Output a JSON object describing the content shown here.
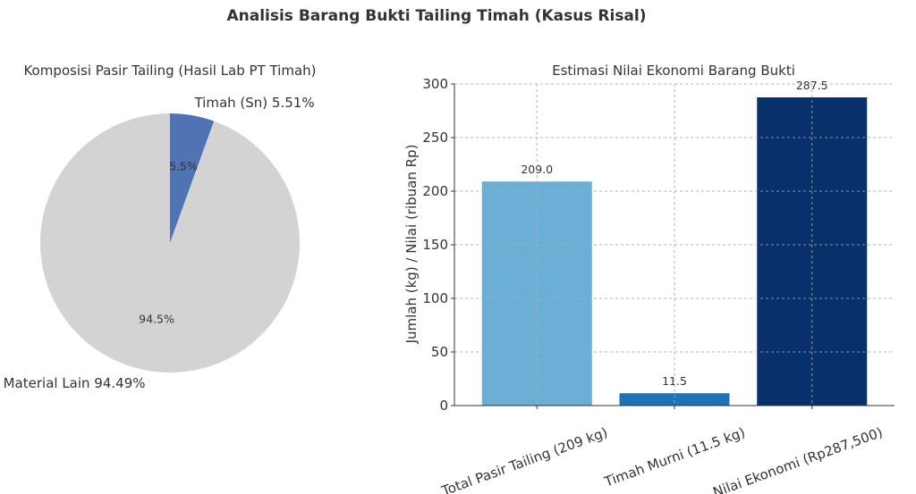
{
  "figure_title": "Analisis Barang Bukti Tailing Timah (Kasus Risal)",
  "chart_data": [
    {
      "type": "pie",
      "title": "Komposisi Pasir Tailing (Hasil Lab PT Timah)",
      "labels": [
        "Timah (Sn) 5.51%",
        "Material Lain 94.49%"
      ],
      "values": [
        5.51,
        94.49
      ],
      "autopct_labels": [
        "5.5%",
        "94.5%"
      ],
      "colors": [
        "#4f73b3",
        "#d3d3d3"
      ],
      "start_angle_deg": 90,
      "direction": "clockwise"
    },
    {
      "type": "bar",
      "title": "Estimasi Nilai Ekonomi Barang Bukti",
      "categories": [
        "Total Pasir Tailing (209 kg)",
        "Timah Murni (11.5 kg)",
        "Nilai Ekonomi (Rp287,500)"
      ],
      "values": [
        209.0,
        11.5,
        287.5
      ],
      "value_labels": [
        "209.0",
        "11.5",
        "287.5"
      ],
      "colors": [
        "#6baed6",
        "#2171b5",
        "#08306b"
      ],
      "xlabel": "",
      "ylabel": "Jumlah (kg) / Nilai (ribuan Rp)",
      "ylim": [
        0,
        300
      ],
      "yticks": [
        0,
        50,
        100,
        150,
        200,
        250,
        300
      ],
      "grid": true,
      "x_tick_rotation_deg": -20
    }
  ]
}
